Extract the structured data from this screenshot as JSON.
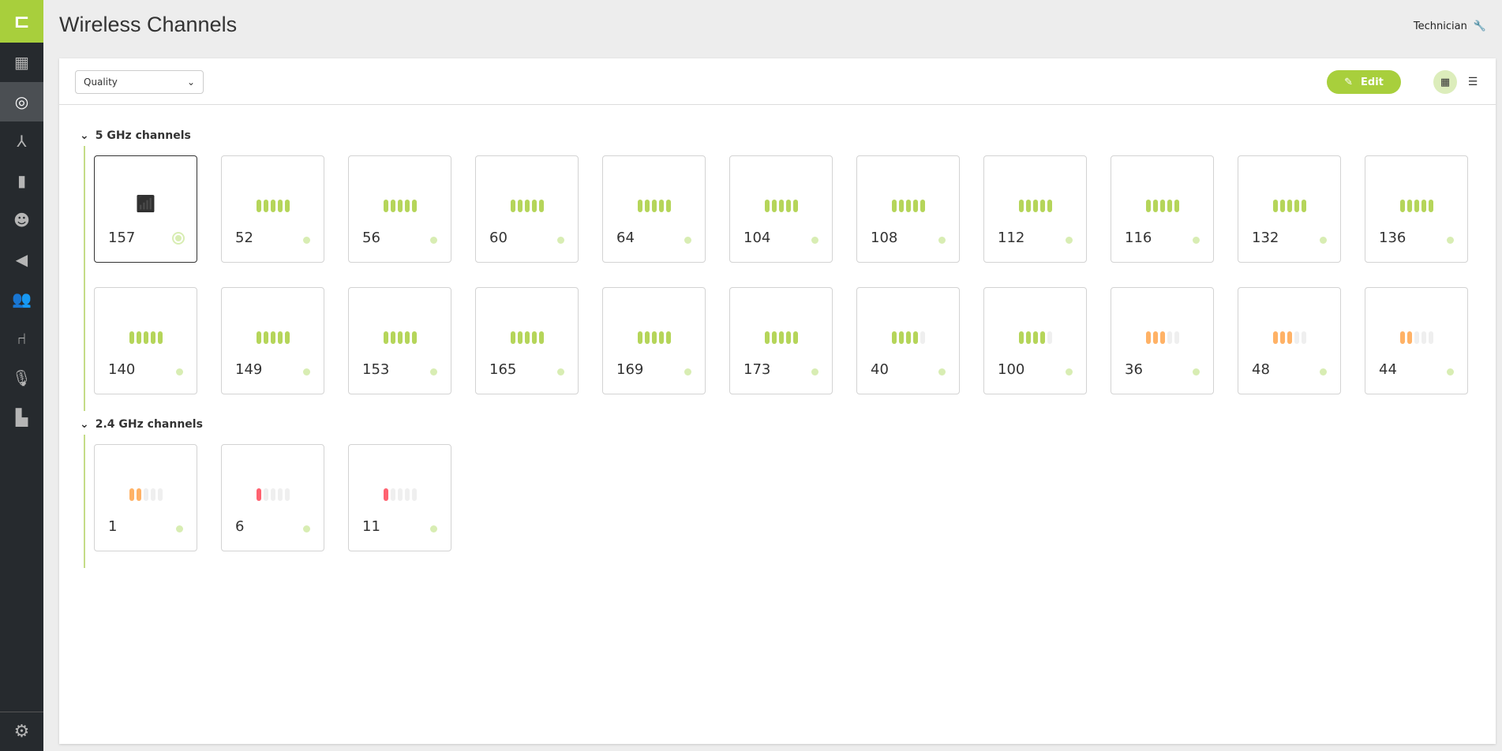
{
  "app": {
    "title": "Wireless Channels",
    "user": "Technician"
  },
  "sidebar": {
    "items": [
      "dashboard",
      "wireless",
      "network",
      "battery",
      "speaker-person",
      "volume",
      "users",
      "seat",
      "microphone",
      "document"
    ],
    "active": 1
  },
  "toolbar": {
    "select_value": "Quality",
    "edit_label": "Edit"
  },
  "colors": {
    "good": "#b5d55a",
    "medium": "#ffb266",
    "bad": "#ff6270",
    "empty": "#efefef",
    "accent": "#a8cf3c"
  },
  "sections": [
    {
      "title": "5 GHz channels",
      "channels": [
        {
          "number": "157",
          "selected": true
        },
        {
          "number": "52",
          "level": 5
        },
        {
          "number": "56",
          "level": 5
        },
        {
          "number": "60",
          "level": 5
        },
        {
          "number": "64",
          "level": 5
        },
        {
          "number": "104",
          "level": 5
        },
        {
          "number": "108",
          "level": 5
        },
        {
          "number": "112",
          "level": 5
        },
        {
          "number": "116",
          "level": 5
        },
        {
          "number": "132",
          "level": 5
        },
        {
          "number": "136",
          "level": 5
        },
        {
          "number": "140",
          "level": 5
        },
        {
          "number": "149",
          "level": 5
        },
        {
          "number": "153",
          "level": 5
        },
        {
          "number": "165",
          "level": 5
        },
        {
          "number": "169",
          "level": 5
        },
        {
          "number": "173",
          "level": 5
        },
        {
          "number": "40",
          "level": 4
        },
        {
          "number": "100",
          "level": 4
        },
        {
          "number": "36",
          "level": 3
        },
        {
          "number": "48",
          "level": 3
        },
        {
          "number": "44",
          "level": 2
        }
      ]
    },
    {
      "title": "2.4 GHz channels",
      "channels": [
        {
          "number": "1",
          "level": 2
        },
        {
          "number": "6",
          "level": 1
        },
        {
          "number": "11",
          "level": 1
        }
      ]
    }
  ]
}
